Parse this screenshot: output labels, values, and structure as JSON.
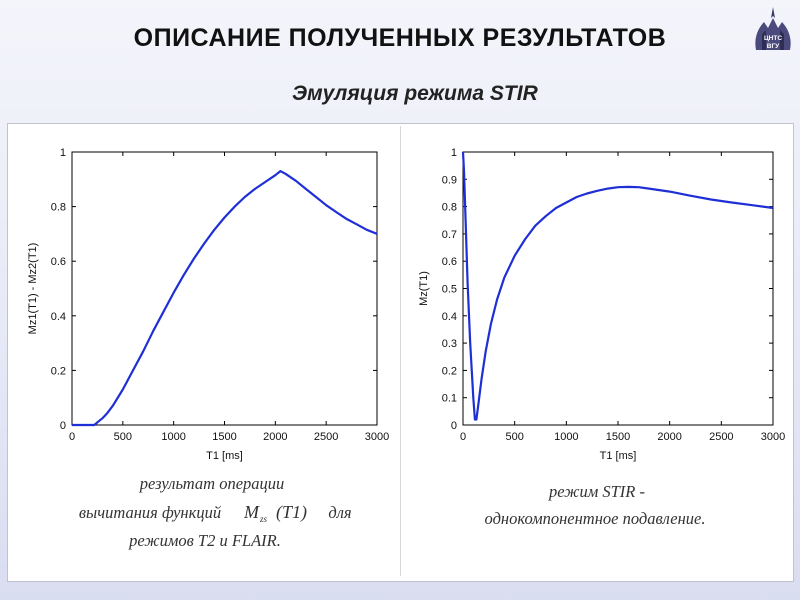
{
  "slide": {
    "title": "ОПИСАНИЕ ПОЛУЧЕННЫХ РЕЗУЛЬТАТОВ",
    "subtitle": "Эмуляция режима STIR",
    "logo_text": "ЦНТС ВГУ"
  },
  "chart_data": [
    {
      "type": "line",
      "xlabel": "T1  [ms]",
      "ylabel": "Mz1(T1) - Mz2(T1)",
      "xlim": [
        0,
        3000
      ],
      "ylim": [
        0,
        1
      ],
      "xticks": [
        "0",
        "500",
        "1000",
        "1500",
        "2000",
        "2500",
        "3000"
      ],
      "yticks": [
        "0",
        "0.2",
        "0.4",
        "0.6",
        "0.8",
        "1"
      ],
      "color": "#1f2fd6",
      "x": [
        0,
        150,
        220,
        250,
        300,
        350,
        400,
        500,
        600,
        700,
        800,
        900,
        1000,
        1100,
        1200,
        1300,
        1400,
        1500,
        1600,
        1700,
        1800,
        1900,
        2000,
        2050,
        2100,
        2200,
        2300,
        2400,
        2500,
        2600,
        2700,
        2800,
        2900,
        3000
      ],
      "y": [
        0.0,
        0.0,
        0.0,
        0.01,
        0.025,
        0.045,
        0.07,
        0.13,
        0.2,
        0.27,
        0.345,
        0.415,
        0.485,
        0.55,
        0.61,
        0.665,
        0.715,
        0.76,
        0.8,
        0.835,
        0.865,
        0.89,
        0.915,
        0.93,
        0.92,
        0.895,
        0.865,
        0.835,
        0.805,
        0.78,
        0.755,
        0.735,
        0.715,
        0.7
      ],
      "caption_lines": [
        "результат операции",
        "вычитания функций",
        "для",
        "режимов T2 и FLAIR."
      ],
      "formula": {
        "main": "M",
        "sub": "zs",
        "arg": "(T1)"
      }
    },
    {
      "type": "line",
      "xlabel": "T1  [ms]",
      "ylabel": "Mz(T1)",
      "xlim": [
        0,
        3000
      ],
      "ylim": [
        0,
        1
      ],
      "xticks": [
        "0",
        "500",
        "1000",
        "1500",
        "2000",
        "2500",
        "3000"
      ],
      "yticks": [
        "0",
        "0.1",
        "0.2",
        "0.3",
        "0.4",
        "0.5",
        "0.6",
        "0.7",
        "0.8",
        "0.9",
        "1"
      ],
      "color": "#1f2fd6",
      "x": [
        0,
        10,
        25,
        45,
        70,
        100,
        115,
        130,
        150,
        180,
        220,
        270,
        330,
        400,
        500,
        600,
        700,
        800,
        900,
        1000,
        1100,
        1200,
        1300,
        1400,
        1500,
        1600,
        1700,
        1800,
        2000,
        2200,
        2400,
        2600,
        2800,
        3000
      ],
      "y": [
        1.0,
        0.93,
        0.75,
        0.52,
        0.3,
        0.1,
        0.02,
        0.02,
        0.08,
        0.17,
        0.27,
        0.37,
        0.46,
        0.54,
        0.62,
        0.68,
        0.73,
        0.765,
        0.795,
        0.815,
        0.835,
        0.848,
        0.858,
        0.866,
        0.871,
        0.872,
        0.871,
        0.866,
        0.855,
        0.84,
        0.826,
        0.815,
        0.805,
        0.795
      ],
      "caption_lines": [
        "режим STIR -",
        "однокомпонентное подавление."
      ]
    }
  ]
}
